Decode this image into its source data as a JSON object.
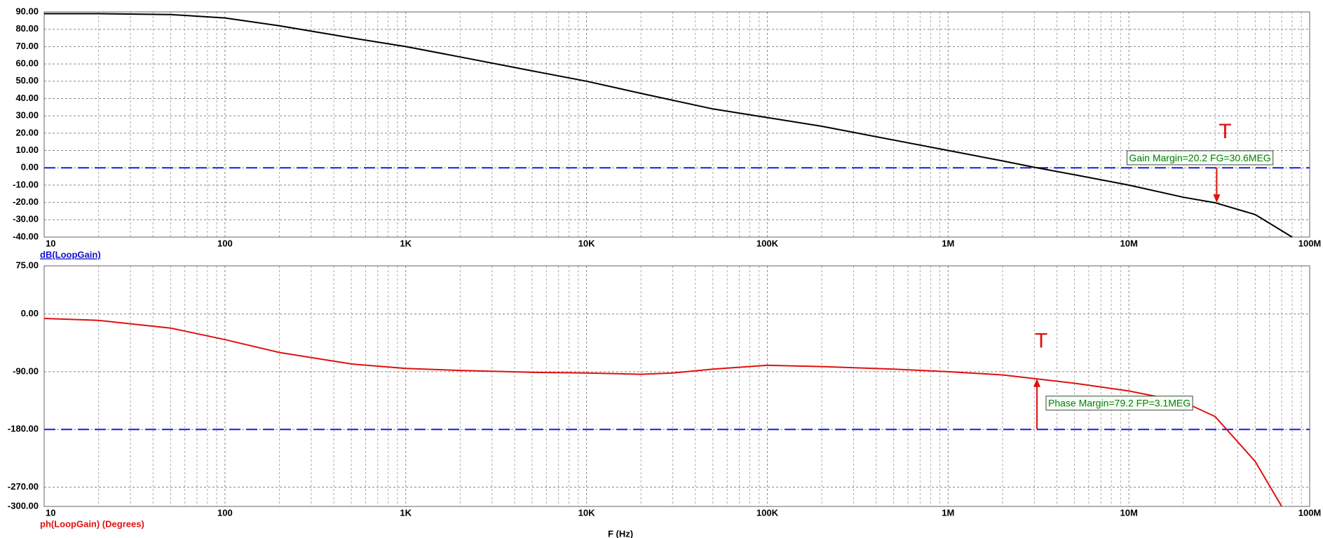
{
  "chart_data": [
    {
      "type": "line",
      "x_log": true,
      "grid": true,
      "axis_label": "dB(LoopGain)",
      "axis_label_color": "#1010d0",
      "xlim": [
        10,
        100000000
      ],
      "xticks": [
        10,
        100,
        {
          "value": 1000,
          "label": "1K"
        },
        {
          "value": 10000,
          "label": "10K"
        },
        {
          "value": 100000,
          "label": "100K"
        },
        {
          "value": 1000000,
          "label": "1M"
        },
        {
          "value": 10000000,
          "label": "10M"
        },
        {
          "value": 100000000,
          "label": "100M"
        }
      ],
      "ylim": [
        -40,
        90
      ],
      "yticks": [
        {
          "value": 90,
          "label": "90.00"
        },
        {
          "value": 80,
          "label": "80.00"
        },
        {
          "value": 70,
          "label": "70.00"
        },
        {
          "value": 60,
          "label": "60.00"
        },
        {
          "value": 50,
          "label": "50.00"
        },
        {
          "value": 40,
          "label": "40.00"
        },
        {
          "value": 30,
          "label": "30.00"
        },
        {
          "value": 20,
          "label": "20.00"
        },
        {
          "value": 10,
          "label": "10.00"
        },
        {
          "value": 0,
          "label": "0.00"
        },
        {
          "value": -10,
          "label": "-10.00"
        },
        {
          "value": -20,
          "label": "-20.00"
        },
        {
          "value": -30,
          "label": "-30.00"
        },
        {
          "value": -40,
          "label": "-40.00"
        }
      ],
      "x": [
        10,
        20,
        50,
        100,
        200,
        500,
        1000,
        2000,
        5000,
        10000,
        20000,
        50000,
        100000,
        200000,
        500000,
        1000000,
        2000000,
        3000000,
        5000000,
        10000000,
        20000000,
        30000000,
        50000000,
        80000000
      ],
      "series": [
        {
          "name": "dB(LoopGain)",
          "color": "#000000",
          "values": [
            89,
            89,
            88.5,
            86.5,
            82,
            75,
            70,
            64,
            56,
            50,
            43,
            34,
            29,
            24,
            16,
            10,
            4,
            0.3,
            -4,
            -10,
            -17,
            -20.2,
            -27,
            -40
          ]
        }
      ],
      "hline": {
        "value": 0,
        "color": "#1a1ae6"
      },
      "marker": {
        "label": "T",
        "text": "Gain Margin=20.2 FG=30.6MEG",
        "x": 30600000,
        "from": 0,
        "to": -20.2,
        "color": "#e01010",
        "text_color": "#0a7a0a"
      }
    },
    {
      "type": "line",
      "x_log": true,
      "grid": true,
      "axis_label": "ph(LoopGain) (Degrees)",
      "axis_label_color": "#e01010",
      "x_label": "F (Hz)",
      "xlim": [
        10,
        100000000
      ],
      "xticks": [
        10,
        100,
        {
          "value": 1000,
          "label": "1K"
        },
        {
          "value": 10000,
          "label": "10K"
        },
        {
          "value": 100000,
          "label": "100K"
        },
        {
          "value": 1000000,
          "label": "1M"
        },
        {
          "value": 10000000,
          "label": "10M"
        },
        {
          "value": 100000000,
          "label": "100M"
        }
      ],
      "ylim": [
        -300,
        75
      ],
      "yticks": [
        {
          "value": 75,
          "label": "75.00"
        },
        {
          "value": 0,
          "label": "0.00"
        },
        {
          "value": -90,
          "label": "-90.00"
        },
        {
          "value": -180,
          "label": "-180.00"
        },
        {
          "value": -270,
          "label": "-270.00"
        },
        {
          "value": -300,
          "label": "-300.00"
        }
      ],
      "x": [
        10,
        20,
        50,
        100,
        200,
        500,
        1000,
        2000,
        5000,
        10000,
        20000,
        30000,
        50000,
        100000,
        200000,
        500000,
        1000000,
        2000000,
        3000000,
        5000000,
        10000000,
        20000000,
        30000000,
        50000000,
        70000000
      ],
      "series": [
        {
          "name": "ph(LoopGain)",
          "color": "#e01010",
          "values": [
            -7,
            -10,
            -22,
            -40,
            -60,
            -78,
            -85,
            -88,
            -91,
            -92,
            -94,
            -92,
            -86,
            -80,
            -82,
            -86,
            -90,
            -95,
            -100.8,
            -108,
            -120,
            -137,
            -160,
            -230,
            -300
          ]
        }
      ],
      "hline": {
        "value": -180,
        "color": "#1a1ae6"
      },
      "marker": {
        "label": "T",
        "text": "Phase Margin=79.2 FP=3.1MEG",
        "x": 3100000,
        "from": -180,
        "to": -100.8,
        "color": "#e01010",
        "text_color": "#0a7a0a"
      }
    }
  ]
}
